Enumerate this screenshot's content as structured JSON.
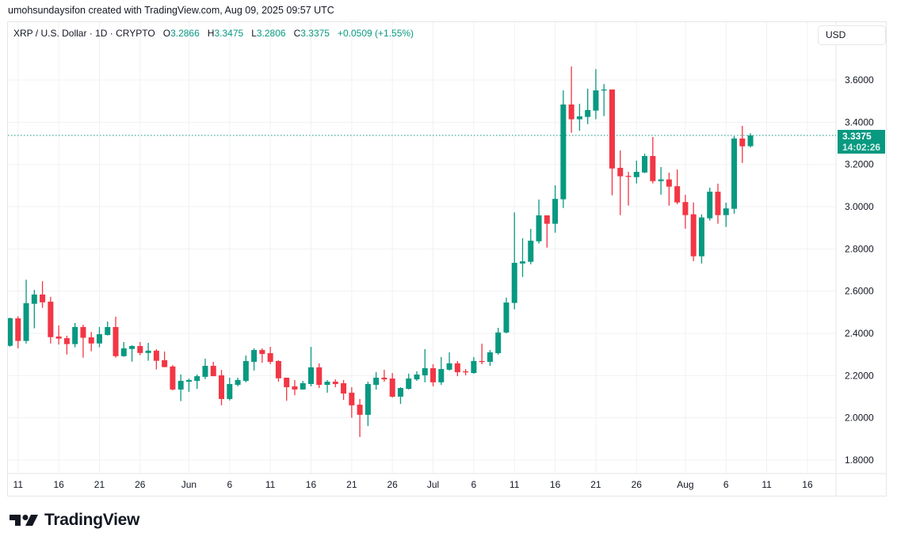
{
  "credit": "umohsundaysifon created with TradingView.com, Aug 09, 2025 09:57 UTC",
  "legend": {
    "symbol": "XRP / U.S. Dollar · 1D · CRYPTO",
    "o_label": "O",
    "o_value": "3.2866",
    "h_label": "H",
    "h_value": "3.3475",
    "l_label": "L",
    "l_value": "3.2806",
    "c_label": "C",
    "c_value": "3.3375",
    "change": "+0.0509 (+1.55%)"
  },
  "currency_button": "USD",
  "last_price": {
    "value": "3.3375",
    "countdown": "14:02:26",
    "price": 3.3375
  },
  "brand": "TradingView",
  "colors": {
    "up": "#089981",
    "down": "#f23645",
    "grid": "#f0f3fa"
  },
  "chart_data": {
    "type": "candlestick",
    "title": "XRP / U.S. Dollar · 1D · CRYPTO",
    "start_date": "2025-05-10",
    "fields": [
      "open",
      "high",
      "low",
      "close"
    ],
    "ylim": [
      1.736,
      3.874
    ],
    "y_ticks": [
      "1.8000",
      "2.0000",
      "2.2000",
      "2.4000",
      "2.6000",
      "2.8000",
      "3.0000",
      "3.2000",
      "3.4000",
      "3.6000"
    ],
    "x_ticks": [
      {
        "label": "11",
        "day": 1
      },
      {
        "label": "16",
        "day": 6
      },
      {
        "label": "21",
        "day": 11
      },
      {
        "label": "26",
        "day": 16
      },
      {
        "label": "Jun",
        "day": 22
      },
      {
        "label": "6",
        "day": 27
      },
      {
        "label": "11",
        "day": 32
      },
      {
        "label": "16",
        "day": 37
      },
      {
        "label": "21",
        "day": 42
      },
      {
        "label": "26",
        "day": 47
      },
      {
        "label": "Jul",
        "day": 52
      },
      {
        "label": "6",
        "day": 57
      },
      {
        "label": "11",
        "day": 62
      },
      {
        "label": "16",
        "day": 67
      },
      {
        "label": "21",
        "day": 72
      },
      {
        "label": "26",
        "day": 77
      },
      {
        "label": "Aug",
        "day": 83
      },
      {
        "label": "6",
        "day": 88
      },
      {
        "label": "11",
        "day": 93
      },
      {
        "label": "16",
        "day": 98
      }
    ],
    "candles": [
      [
        2.341,
        2.474,
        2.337,
        2.472
      ],
      [
        2.471,
        2.481,
        2.329,
        2.364
      ],
      [
        2.364,
        2.654,
        2.352,
        2.543
      ],
      [
        2.54,
        2.606,
        2.424,
        2.584
      ],
      [
        2.584,
        2.647,
        2.521,
        2.547
      ],
      [
        2.55,
        2.573,
        2.352,
        2.382
      ],
      [
        2.385,
        2.437,
        2.347,
        2.375
      ],
      [
        2.377,
        2.389,
        2.3,
        2.349
      ],
      [
        2.349,
        2.449,
        2.334,
        2.43
      ],
      [
        2.43,
        2.441,
        2.285,
        2.379
      ],
      [
        2.381,
        2.407,
        2.315,
        2.352
      ],
      [
        2.352,
        2.43,
        2.334,
        2.396
      ],
      [
        2.392,
        2.456,
        2.39,
        2.43
      ],
      [
        2.43,
        2.479,
        2.285,
        2.292
      ],
      [
        2.292,
        2.359,
        2.289,
        2.329
      ],
      [
        2.326,
        2.344,
        2.266,
        2.34
      ],
      [
        2.34,
        2.359,
        2.296,
        2.307
      ],
      [
        2.307,
        2.355,
        2.27,
        2.318
      ],
      [
        2.318,
        2.325,
        2.229,
        2.27
      ],
      [
        2.273,
        2.314,
        2.24,
        2.24
      ],
      [
        2.243,
        2.25,
        2.13,
        2.134
      ],
      [
        2.134,
        2.205,
        2.079,
        2.175
      ],
      [
        2.171,
        2.186,
        2.123,
        2.179
      ],
      [
        2.175,
        2.205,
        2.137,
        2.197
      ],
      [
        2.194,
        2.28,
        2.183,
        2.246
      ],
      [
        2.246,
        2.265,
        2.197,
        2.197
      ],
      [
        2.201,
        2.227,
        2.059,
        2.089
      ],
      [
        2.089,
        2.19,
        2.082,
        2.16
      ],
      [
        2.156,
        2.19,
        2.149,
        2.179
      ],
      [
        2.175,
        2.295,
        2.168,
        2.269
      ],
      [
        2.265,
        2.329,
        2.224,
        2.321
      ],
      [
        2.321,
        2.329,
        2.261,
        2.302
      ],
      [
        2.306,
        2.336,
        2.254,
        2.265
      ],
      [
        2.269,
        2.273,
        2.171,
        2.187
      ],
      [
        2.19,
        2.19,
        2.081,
        2.145
      ],
      [
        2.149,
        2.179,
        2.107,
        2.134
      ],
      [
        2.134,
        2.175,
        2.134,
        2.164
      ],
      [
        2.16,
        2.336,
        2.149,
        2.239
      ],
      [
        2.239,
        2.258,
        2.141,
        2.156
      ],
      [
        2.156,
        2.179,
        2.119,
        2.171
      ],
      [
        2.171,
        2.182,
        2.145,
        2.16
      ],
      [
        2.164,
        2.179,
        2.085,
        2.115
      ],
      [
        2.119,
        2.145,
        2.0,
        2.059
      ],
      [
        2.062,
        2.089,
        1.909,
        2.014
      ],
      [
        2.014,
        2.171,
        1.961,
        2.16
      ],
      [
        2.156,
        2.216,
        2.134,
        2.19
      ],
      [
        2.19,
        2.227,
        2.171,
        2.182
      ],
      [
        2.186,
        2.212,
        2.096,
        2.1
      ],
      [
        2.1,
        2.145,
        2.066,
        2.141
      ],
      [
        2.137,
        2.209,
        2.134,
        2.186
      ],
      [
        2.182,
        2.22,
        2.175,
        2.205
      ],
      [
        2.201,
        2.325,
        2.168,
        2.235
      ],
      [
        2.235,
        2.254,
        2.149,
        2.168
      ],
      [
        2.168,
        2.288,
        2.156,
        2.231
      ],
      [
        2.228,
        2.31,
        2.224,
        2.258
      ],
      [
        2.258,
        2.269,
        2.197,
        2.216
      ],
      [
        2.22,
        2.231,
        2.201,
        2.216
      ],
      [
        2.212,
        2.288,
        2.209,
        2.269
      ],
      [
        2.269,
        2.351,
        2.254,
        2.265
      ],
      [
        2.265,
        2.321,
        2.246,
        2.31
      ],
      [
        2.306,
        2.426,
        2.299,
        2.404
      ],
      [
        2.404,
        2.569,
        2.4,
        2.546
      ],
      [
        2.544,
        2.973,
        2.514,
        2.734
      ],
      [
        2.731,
        2.85,
        2.667,
        2.741
      ],
      [
        2.739,
        2.895,
        2.727,
        2.839
      ],
      [
        2.836,
        3.034,
        2.825,
        2.959
      ],
      [
        2.959,
        2.959,
        2.806,
        2.919
      ],
      [
        2.919,
        3.101,
        2.877,
        3.037
      ],
      [
        3.035,
        3.551,
        2.994,
        3.484
      ],
      [
        3.484,
        3.664,
        3.35,
        3.414
      ],
      [
        3.414,
        3.487,
        3.36,
        3.428
      ],
      [
        3.425,
        3.559,
        3.391,
        3.458
      ],
      [
        3.455,
        3.652,
        3.414,
        3.551
      ],
      [
        3.551,
        3.581,
        3.429,
        3.555
      ],
      [
        3.555,
        3.555,
        3.054,
        3.181
      ],
      [
        3.184,
        3.266,
        2.96,
        3.144
      ],
      [
        3.146,
        3.165,
        3.005,
        3.143
      ],
      [
        3.14,
        3.218,
        3.11,
        3.165
      ],
      [
        3.162,
        3.251,
        3.159,
        3.24
      ],
      [
        3.24,
        3.33,
        3.11,
        3.121
      ],
      [
        3.121,
        3.188,
        3.057,
        3.129
      ],
      [
        3.129,
        3.161,
        3.005,
        3.095
      ],
      [
        3.097,
        3.176,
        3.012,
        3.02
      ],
      [
        3.022,
        3.056,
        2.896,
        2.96
      ],
      [
        2.964,
        3.02,
        2.742,
        2.765
      ],
      [
        2.765,
        2.964,
        2.731,
        2.949
      ],
      [
        2.945,
        3.09,
        2.934,
        3.071
      ],
      [
        3.071,
        3.109,
        2.919,
        2.96
      ],
      [
        2.96,
        3.019,
        2.904,
        2.992
      ],
      [
        2.99,
        3.334,
        2.967,
        3.323
      ],
      [
        3.323,
        3.383,
        3.207,
        3.286
      ],
      [
        3.2866,
        3.3475,
        3.2806,
        3.3375
      ]
    ]
  }
}
